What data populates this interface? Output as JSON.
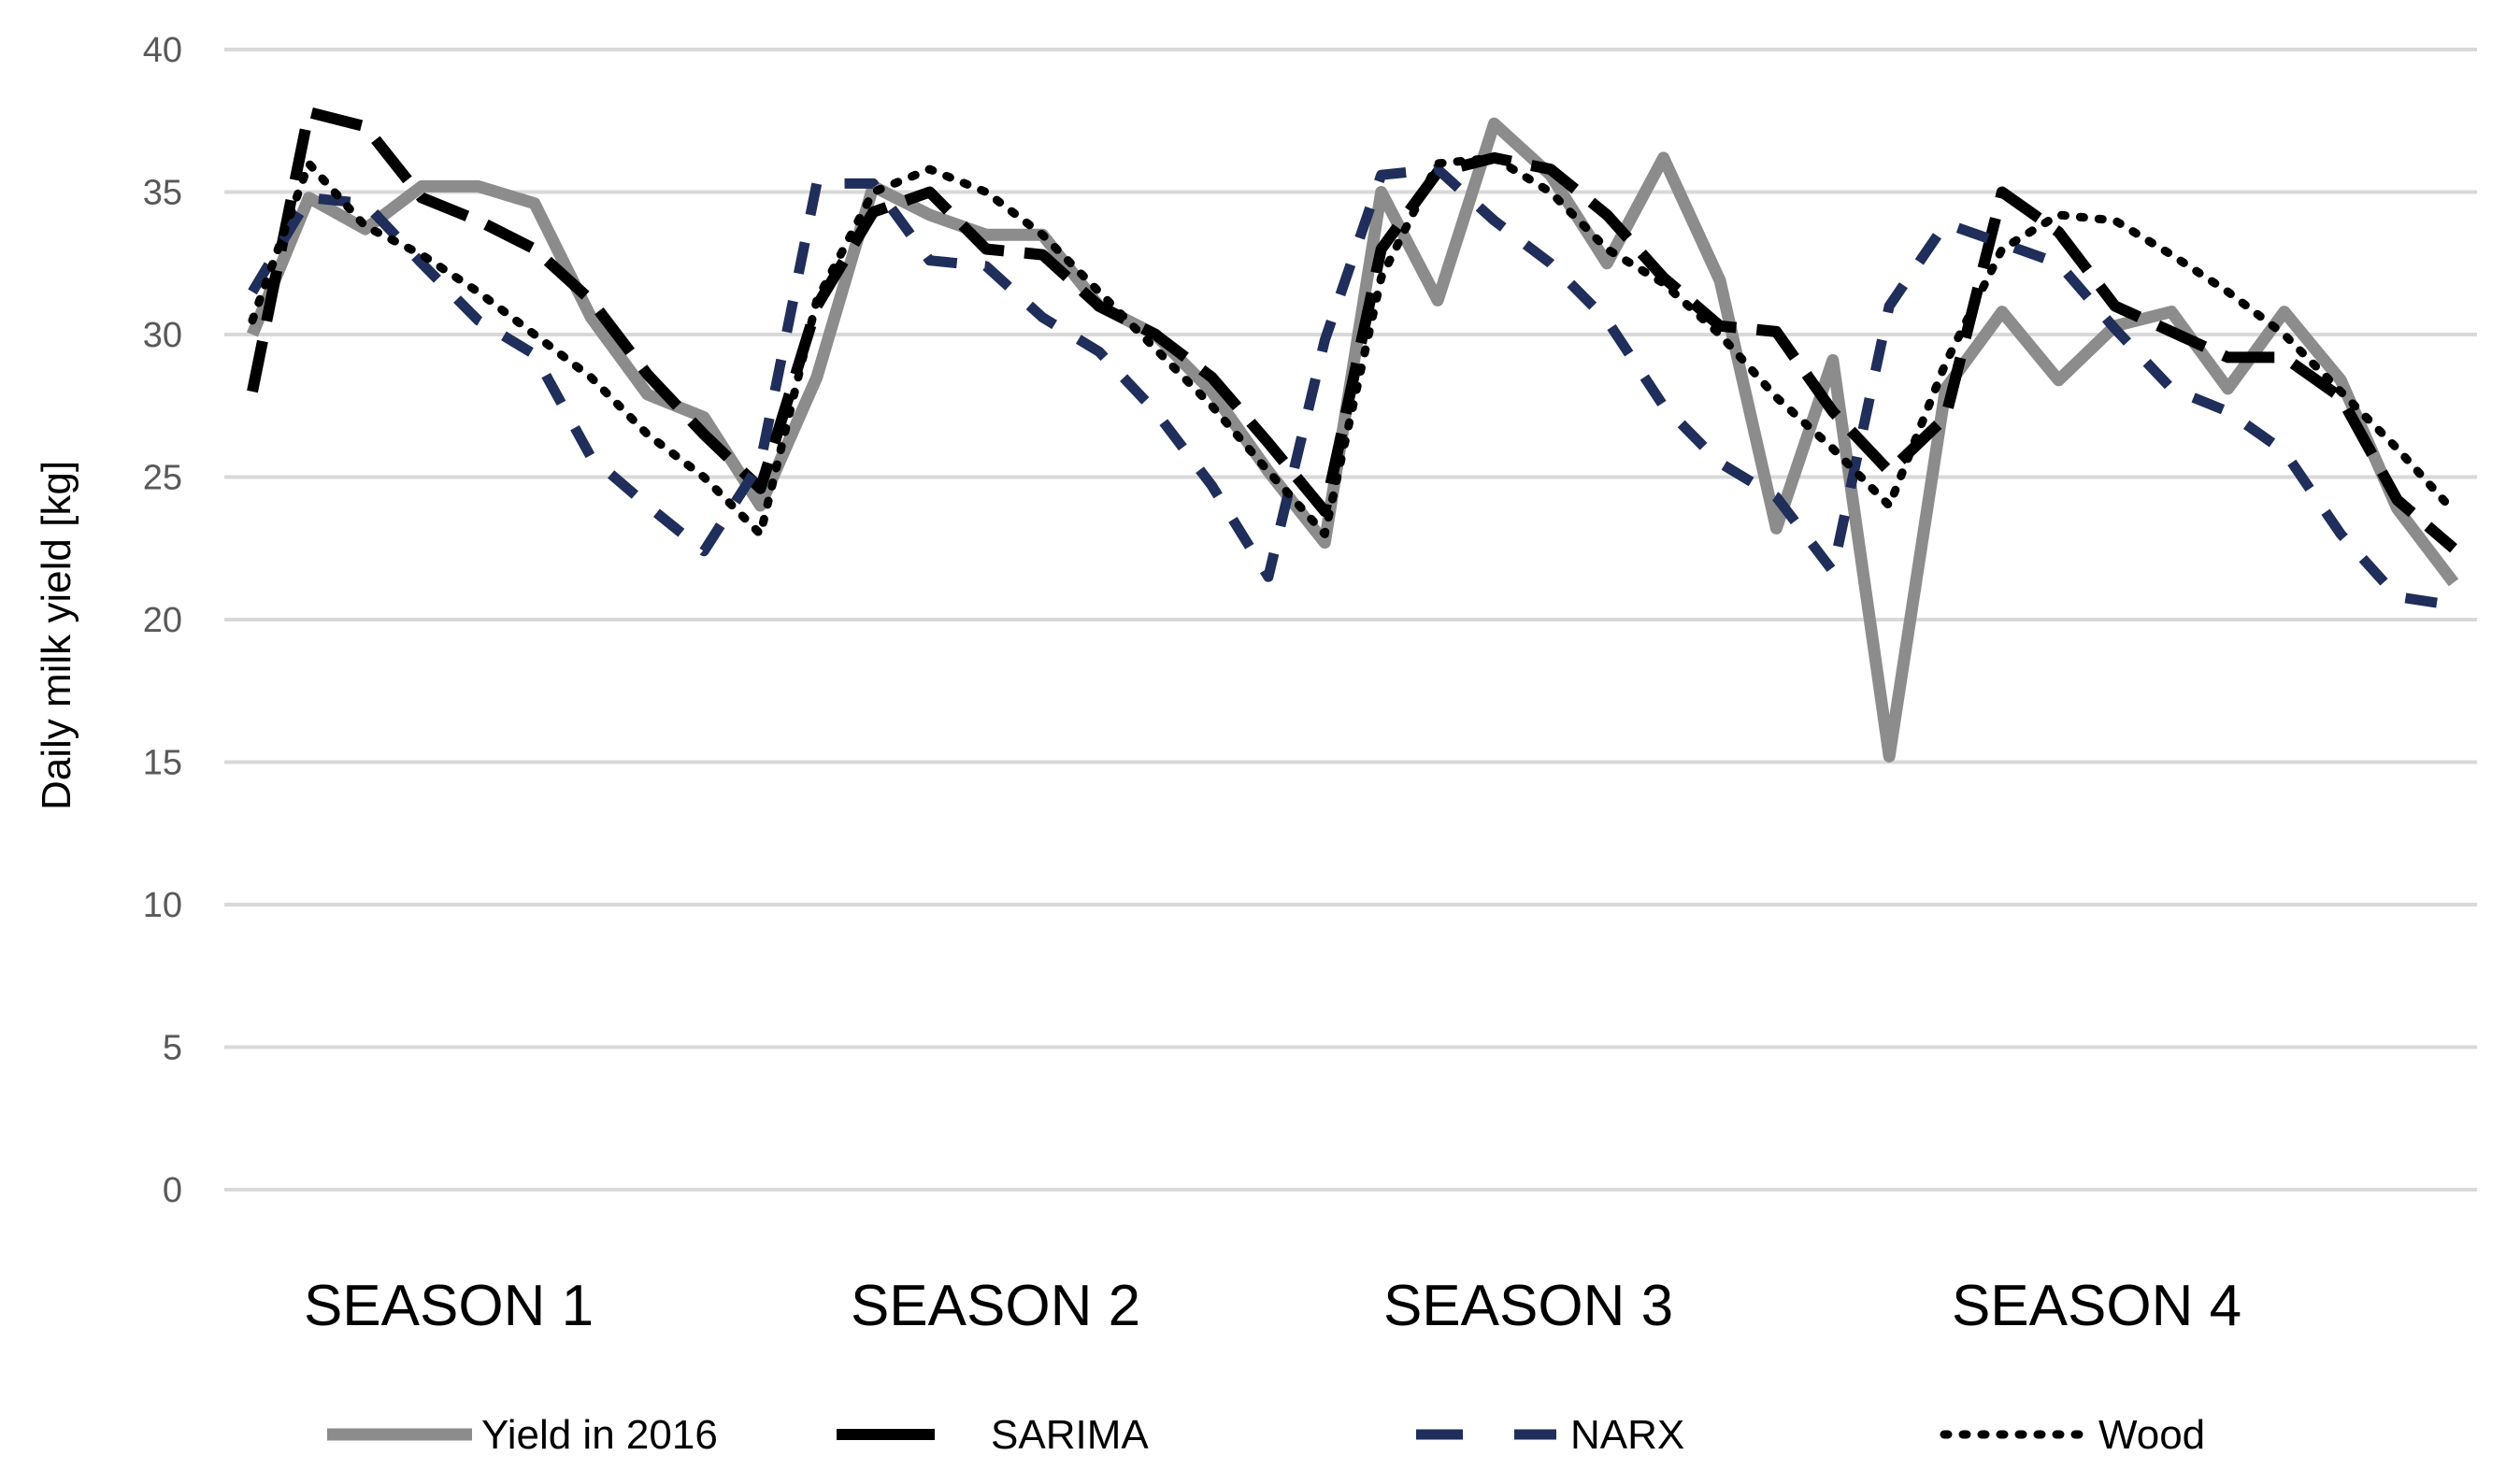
{
  "chart_data": {
    "type": "line",
    "title": "",
    "xlabel": "",
    "ylabel": "Daily milk yield [kg]",
    "ylim": [
      0,
      40
    ],
    "yticks": [
      "0",
      "5",
      "10",
      "15",
      "20",
      "25",
      "30",
      "35",
      "40"
    ],
    "grid": true,
    "legend_position": "bottom",
    "season_labels": [
      "SEASON 1",
      "SEASON 2",
      "SEASON 3",
      "SEASON 4"
    ],
    "series": [
      {
        "name": "Yield in 2016",
        "color": "#8c8c8c",
        "style": "solid",
        "values": [
          30,
          34.8,
          33.7,
          35.2,
          35.2,
          34.6,
          30.6,
          27.9,
          27.1,
          24.0,
          28.5,
          35.2,
          34.2,
          33.5,
          33.5,
          31.0,
          30.0,
          28.0,
          25.2,
          22.7,
          35.0,
          31.2,
          37.4,
          35.6,
          32.5,
          36.2,
          31.9,
          23.2,
          29.1,
          15.2,
          28.1,
          30.8,
          28.4,
          30.3,
          30.8,
          28.1,
          30.8,
          28.4,
          23.9,
          21.3
        ]
      },
      {
        "name": "SARIMA",
        "color": "#000000",
        "style": "longdash",
        "values": [
          28.0,
          37.8,
          37.3,
          34.8,
          34.0,
          33.0,
          31.2,
          28.6,
          26.5,
          24.6,
          31.0,
          34.3,
          35.0,
          33.0,
          32.8,
          31.0,
          30.0,
          28.5,
          26.2,
          23.8,
          33.0,
          35.7,
          36.2,
          35.8,
          34.2,
          32.0,
          30.3,
          30.1,
          27.3,
          25.2,
          27.1,
          35.0,
          33.6,
          31.0,
          30.1,
          29.2,
          29.2,
          27.8,
          24.2,
          22.5
        ]
      },
      {
        "name": "NARX",
        "color": "#1f2e5a",
        "style": "dash",
        "values": [
          31.5,
          34.8,
          34.6,
          32.5,
          30.5,
          29.3,
          25.7,
          24.0,
          22.4,
          25.5,
          35.3,
          35.3,
          32.6,
          32.4,
          30.6,
          29.4,
          27.3,
          24.7,
          21.5,
          29.8,
          35.6,
          35.8,
          34.0,
          32.5,
          30.5,
          27.5,
          25.5,
          24.3,
          21.7,
          31.0,
          33.9,
          33.2,
          32.5,
          30.2,
          28.1,
          27.3,
          25.9,
          23.0,
          20.8,
          20.5
        ]
      },
      {
        "name": "Wood",
        "color": "#000000",
        "style": "dot",
        "values": [
          30.5,
          36.0,
          33.8,
          32.8,
          31.5,
          30.0,
          28.5,
          26.5,
          25.0,
          23.0,
          31.2,
          35.0,
          35.8,
          35.0,
          33.5,
          31.5,
          29.5,
          27.5,
          25.2,
          23.0,
          32.0,
          36.0,
          36.2,
          35.0,
          33.0,
          31.8,
          30.0,
          27.8,
          26.0,
          24.0,
          29.0,
          33.0,
          34.2,
          34.0,
          32.8,
          31.5,
          30.0,
          28.0,
          26.0,
          23.8
        ]
      }
    ]
  }
}
